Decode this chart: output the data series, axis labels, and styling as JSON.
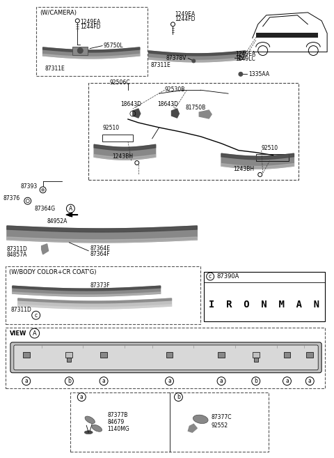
{
  "bg_color": "#ffffff",
  "line_color": "#000000",
  "gray_dark": "#4a4a4a",
  "gray_mid": "#888888",
  "gray_light": "#c0c0c0",
  "gray_lighter": "#d8d8d8",
  "sec1_label": "(W/CAMERA)",
  "sec4_label": "(W/BODY COLOR+CR COAT'G)",
  "sec5_label": "VIEW",
  "ironman_text": "I  R  O  N  M  A  N",
  "badge_label": "87390A",
  "parts_sec1": [
    "1249EA",
    "1244FD",
    "95750L",
    "87311E"
  ],
  "parts_sec2": [
    "1249EA",
    "1244FD",
    "87378V",
    "87311E",
    "1249EA",
    "1249LC",
    "1335AA"
  ],
  "parts_center": [
    "92506C",
    "92530B",
    "18643D",
    "18643D",
    "81750B",
    "92510",
    "1243BH",
    "92510",
    "1243BH"
  ],
  "parts_left": [
    "87393",
    "87376",
    "87364G",
    "84952A",
    "87311D",
    "84857A",
    "87364E",
    "87364F"
  ],
  "parts_sec4": [
    "87373F",
    "87311D"
  ],
  "parts_a": [
    "87377B",
    "84679",
    "1140MG"
  ],
  "parts_b": [
    "87377C",
    "92552"
  ]
}
